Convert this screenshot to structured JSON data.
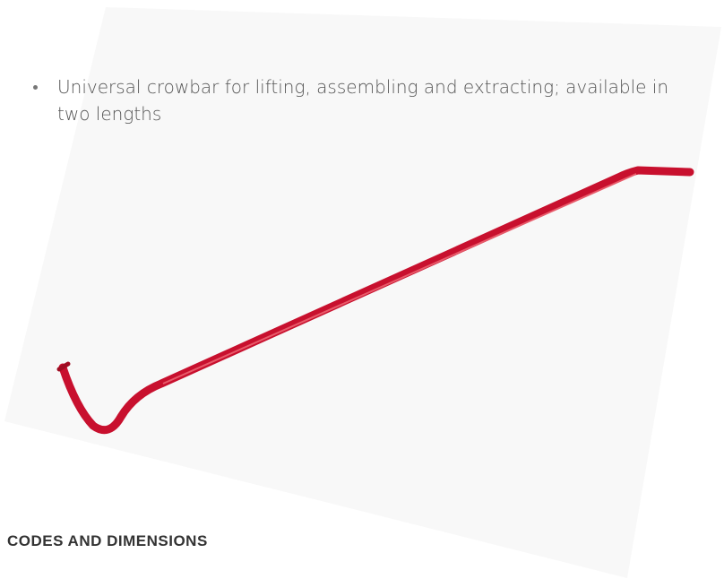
{
  "bullets": [
    "Universal crowbar for lifting, assembling and extracting; available in two lengths"
  ],
  "section": {
    "title": "CODES AND DIMENSIONS"
  }
}
